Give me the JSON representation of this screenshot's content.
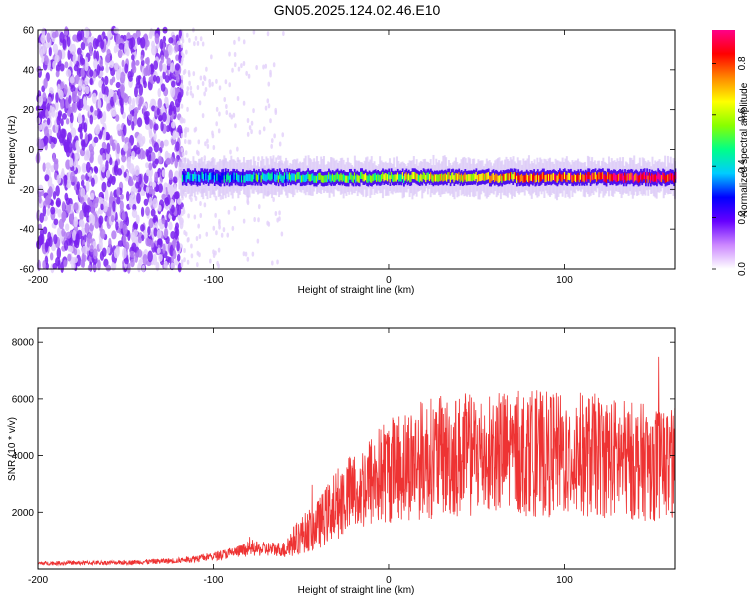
{
  "title": "GN05.2025.124.02.46.E10",
  "chart_data": [
    {
      "type": "heatmap",
      "xlabel": "Height of straight line (km)",
      "ylabel": "Frequency (Hz)",
      "xlim": [
        -200,
        163
      ],
      "ylim": [
        -60,
        60
      ],
      "x_ticks": [
        -200,
        -100,
        0,
        100
      ],
      "y_ticks": [
        -60,
        -40,
        -20,
        0,
        20,
        40,
        60
      ],
      "colorbar": {
        "label": "Normalized spectral amplitude",
        "range": [
          0,
          0.93
        ],
        "ticks": [
          "0.0",
          "0.2",
          "0.4",
          "0.6",
          "0.8"
        ],
        "tick_values": [
          0,
          0.2,
          0.4,
          0.6,
          0.8
        ],
        "colors": [
          "#ffffff",
          "#cc88ff",
          "#6600ff",
          "#0000ff",
          "#00ccff",
          "#00ff88",
          "#88ff00",
          "#ffff00",
          "#ff8800",
          "#ff0000",
          "#ff0088"
        ]
      },
      "features": {
        "noise_region_x": [
          -200,
          -118
        ],
        "sparse_noise_x": [
          -118,
          -60
        ],
        "signal_band_x": [
          -130,
          163
        ],
        "signal_band_center_hz": -14,
        "signal_band_width_hz": 8
      }
    },
    {
      "type": "line",
      "xlabel": "Height of straight line (km)",
      "ylabel": "SNR (10 * v/v)",
      "xlim": [
        -200,
        163
      ],
      "ylim": [
        0,
        8500
      ],
      "x_ticks": [
        -200,
        -100,
        0,
        100
      ],
      "y_ticks": [
        2000,
        4000,
        6000,
        8000
      ],
      "series": [
        {
          "color": "#ee3333",
          "trend": [
            [
              -200,
              200
            ],
            [
              -150,
              230
            ],
            [
              -120,
              300
            ],
            [
              -100,
              450
            ],
            [
              -80,
              700
            ],
            [
              -60,
              700
            ],
            [
              -50,
              1200
            ],
            [
              -40,
              1600
            ],
            [
              -30,
              2300
            ],
            [
              -20,
              2700
            ],
            [
              -10,
              3100
            ],
            [
              0,
              3500
            ],
            [
              10,
              3700
            ],
            [
              20,
              3900
            ],
            [
              40,
              4000
            ],
            [
              60,
              4100
            ],
            [
              80,
              4100
            ],
            [
              100,
              4000
            ],
            [
              120,
              4000
            ],
            [
              140,
              3800
            ],
            [
              163,
              3700
            ]
          ]
        }
      ]
    }
  ]
}
